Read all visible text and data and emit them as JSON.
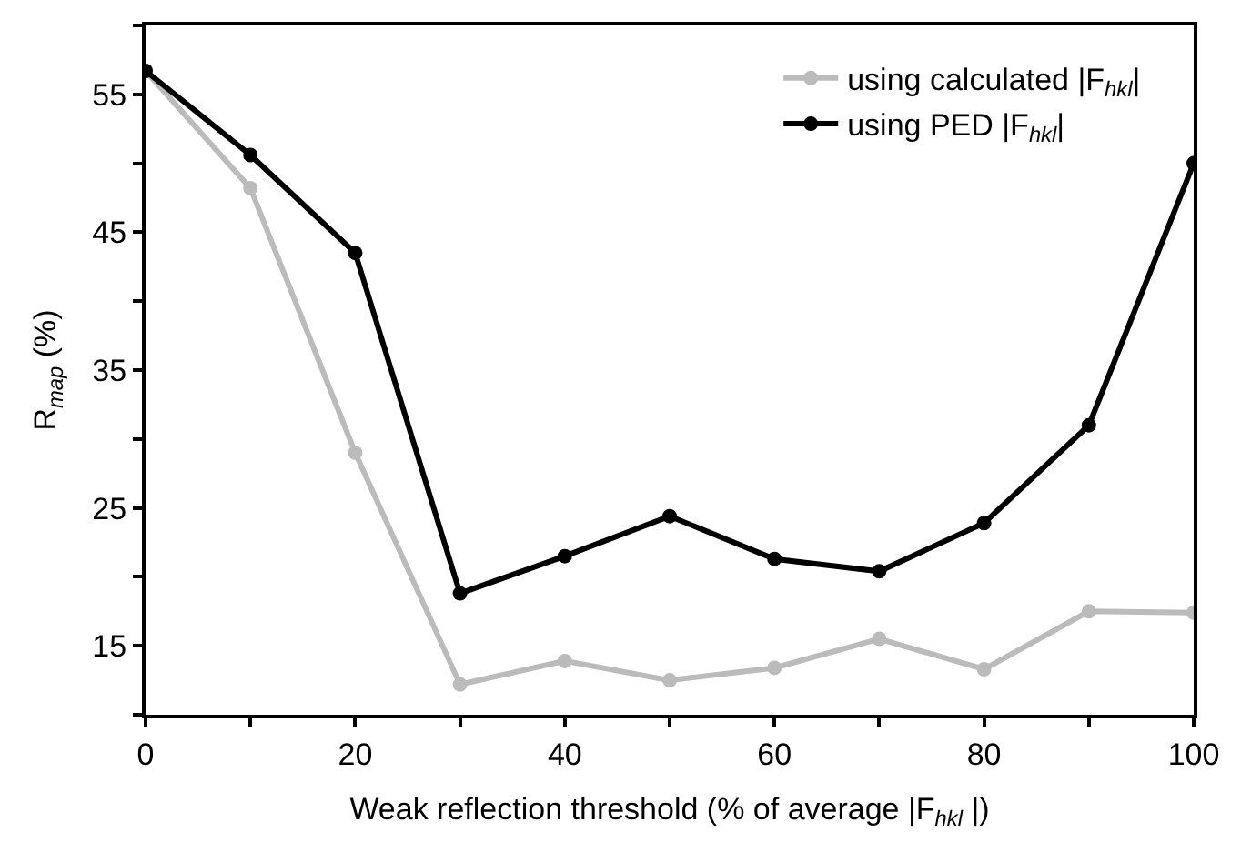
{
  "chart_data": {
    "type": "line",
    "xlabel": "Weak reflection threshold (% of average |F$_{hkl}$ |)",
    "ylabel": "R$_{map}$ (%)",
    "x": [
      0,
      10,
      20,
      30,
      40,
      50,
      60,
      70,
      80,
      90,
      100
    ],
    "series": [
      {
        "name": "using calculated |F$_{hkl}$|",
        "color": "#bbbbbb",
        "values": [
          56.7,
          48.2,
          29.0,
          12.2,
          13.9,
          12.5,
          13.4,
          15.5,
          13.3,
          17.5,
          17.4
        ]
      },
      {
        "name": "using PED |F$_{hkl}$|",
        "color": "#000000",
        "values": [
          56.7,
          50.6,
          43.5,
          18.8,
          21.5,
          24.4,
          21.3,
          20.4,
          23.9,
          31.0,
          50.0
        ]
      }
    ],
    "xlim": [
      0,
      100
    ],
    "ylim": [
      10,
      60
    ],
    "xticks": [
      0,
      {
        "value": 10,
        "label": null
      },
      20,
      {
        "value": 30,
        "label": null
      },
      40,
      {
        "value": 50,
        "label": null
      },
      60,
      {
        "value": 70,
        "label": null
      },
      80,
      {
        "value": 90,
        "label": null
      },
      100
    ],
    "yticks": [
      {
        "value": 10,
        "label": null
      },
      15,
      {
        "value": 20,
        "label": null
      },
      25,
      {
        "value": 30,
        "label": null
      },
      35,
      {
        "value": 40,
        "label": null
      },
      45,
      {
        "value": 50,
        "label": null
      },
      55,
      {
        "value": 60,
        "label": null
      }
    ],
    "legend": "top right",
    "marker": "circle",
    "line_style": "solid"
  }
}
